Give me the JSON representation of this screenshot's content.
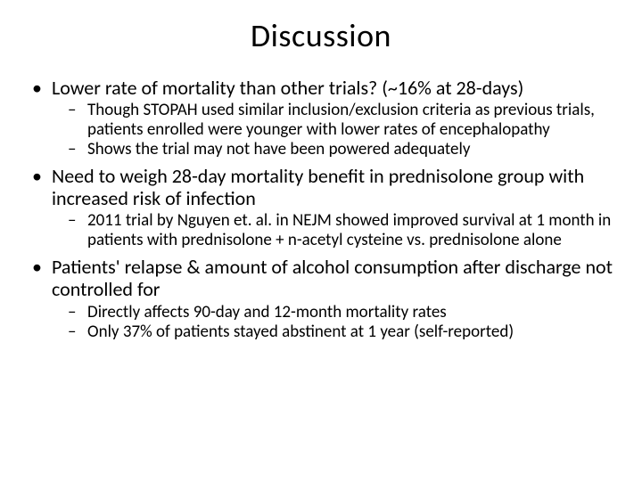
{
  "title": "Discussion",
  "bullets": [
    {
      "text": "Lower rate of mortality than other trials? (~16% at 28-days)",
      "sub": [
        "Though STOPAH used similar inclusion/exclusion criteria as previous trials, patients enrolled were younger with lower rates of encephalopathy",
        "Shows the trial may not have been powered adequately"
      ]
    },
    {
      "text": "Need to weigh 28-day mortality benefit in prednisolone group with increased risk of infection",
      "sub": [
        "2011 trial by Nguyen et. al. in NEJM showed improved survival at 1 month in patients with prednisolone + n-acetyl cysteine vs. prednisolone alone"
      ]
    },
    {
      "text": "Patients' relapse & amount of alcohol consumption after discharge not controlled for",
      "sub": [
        "Directly affects 90-day and 12-month mortality rates",
        "Only 37% of patients stayed abstinent at 1 year (self-reported)"
      ]
    }
  ],
  "colors": {
    "background": "#ffffff",
    "text": "#000000"
  },
  "typography": {
    "title_fontsize": 36,
    "level1_fontsize": 22,
    "level2_fontsize": 19,
    "font_family": "Calibri"
  }
}
